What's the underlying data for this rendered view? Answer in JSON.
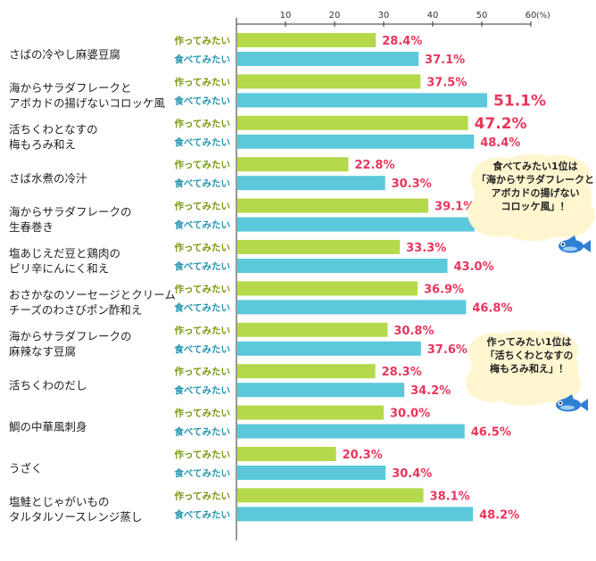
{
  "chart_data": {
    "type": "bar",
    "orientation": "horizontal",
    "unit_label": "(%)",
    "xlim": [
      0,
      60
    ],
    "x_ticks": [
      10,
      20,
      30,
      40,
      50,
      60
    ],
    "categories": [
      [
        "さばの冷やし麻婆豆腐"
      ],
      [
        "海からサラダフレークと",
        "アボカドの揚げないコロッケ風"
      ],
      [
        "活ちくわとなすの",
        "梅もろみ和え"
      ],
      [
        "さば水煮の冷汁"
      ],
      [
        "海からサラダフレークの",
        "生春巻き"
      ],
      [
        "塩あじえだ豆と鶏肉の",
        "ピリ辛にんにく和え"
      ],
      [
        "おさかなのソーセージとクリーム",
        "チーズのわさびポン酢和え"
      ],
      [
        "海からサラダフレークの",
        "麻辣なす豆腐"
      ],
      [
        "活ちくわのだし"
      ],
      [
        "鯛の中華風刺身"
      ],
      [
        "うざく"
      ],
      [
        "塩鮭とじゃがいもの",
        "タルタルソースレンジ蒸し"
      ]
    ],
    "series": [
      {
        "name": "作ってみたい",
        "color": "#b4d94a",
        "label_color": "#7a9a10",
        "values": [
          28.4,
          37.5,
          47.2,
          22.8,
          39.1,
          33.3,
          36.9,
          30.8,
          28.3,
          30.0,
          20.3,
          38.1
        ]
      },
      {
        "name": "食べてみたい",
        "color": "#5bc8dc",
        "label_color": "#2a97b0",
        "values": [
          37.1,
          51.1,
          48.4,
          30.3,
          48.5,
          43.0,
          46.8,
          37.6,
          34.2,
          46.5,
          30.4,
          48.2
        ]
      }
    ],
    "value_labels": {
      "series0": [
        "28.4%",
        "37.5%",
        "47.2%",
        "22.8%",
        "39.1%",
        "33.3%",
        "36.9%",
        "30.8%",
        "28.3%",
        "30.0%",
        "20.3%",
        "38.1%"
      ],
      "series1": [
        "37.1%",
        "51.1%",
        "48.4%",
        "30.3%",
        "48.5%",
        "43.0%",
        "46.8%",
        "37.6%",
        "34.2%",
        "46.5%",
        "30.4%",
        "48.2%"
      ]
    },
    "highlighted": {
      "series0": 2,
      "series1": 1
    },
    "annotations": [
      {
        "lines": [
          "食べてみたい1位は",
          "「海からサラダフレークと",
          "アボカドの揚げない",
          "コロッケ風」！"
        ]
      },
      {
        "lines": [
          "作ってみたい1位は",
          "「活ちくわとなすの",
          "梅もろみ和え」！"
        ]
      }
    ],
    "value_color": "#e8365c",
    "axis_color": "#333333",
    "grid": false,
    "legend": "none"
  }
}
